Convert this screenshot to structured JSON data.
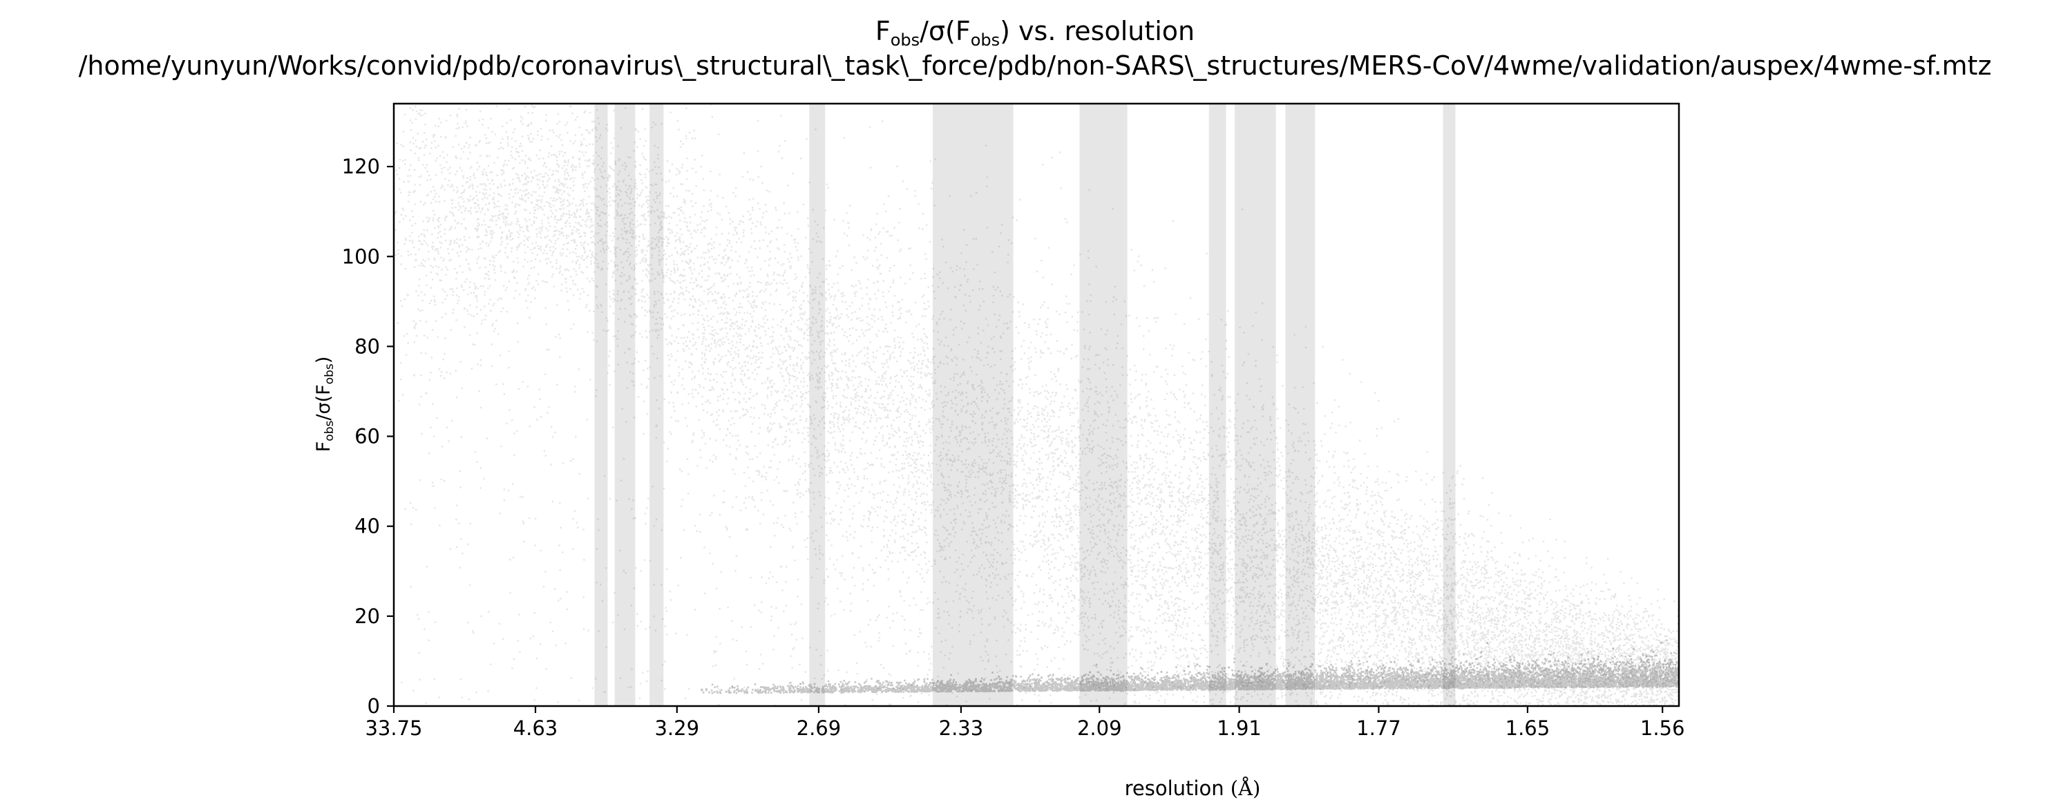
{
  "chart_data": {
    "type": "scatter",
    "title_line1_prefix": "F",
    "title_line1_sub1": "obs",
    "title_line1_mid": "/σ(F",
    "title_line1_sub2": "obs",
    "title_line1_suffix": ") vs. resolution",
    "title_line2": "/home/yunyun/Works/convid/pdb/coronavirus\\_structural\\_task\\_force/pdb/non-SARS\\_structures/MERS-CoV/4wme/validation/auspex/4wme-sf.mtz",
    "xlabel_text": "resolution ",
    "xlabel_unit": "(Å)",
    "ylabel_prefix": "F",
    "ylabel_sub1": "obs",
    "ylabel_mid": "/σ(F",
    "ylabel_sub2": "obs",
    "ylabel_suffix": ")",
    "x_scale": "inverse-square resolution (1/d²)",
    "xlim_resolution": [
      33.75,
      1.55
    ],
    "ylim": [
      0,
      134
    ],
    "x_ticks": [
      "33.75",
      "4.63",
      "3.29",
      "2.69",
      "2.33",
      "2.09",
      "1.91",
      "1.77",
      "1.65",
      "1.56"
    ],
    "x_tick_values": [
      33.75,
      4.63,
      3.29,
      2.69,
      2.33,
      2.09,
      1.91,
      1.77,
      1.65,
      1.56
    ],
    "y_ticks": [
      "0",
      "20",
      "40",
      "60",
      "80",
      "100",
      "120"
    ],
    "y_tick_values": [
      0,
      20,
      40,
      60,
      80,
      100,
      120
    ],
    "grid": false,
    "legend": "none",
    "point_color": "#000000",
    "band_color": "#e6e6e6",
    "highlighted_resolution_bands": [
      [
        3.9,
        3.78
      ],
      [
        3.72,
        3.56
      ],
      [
        3.46,
        3.37
      ],
      [
        2.72,
        2.67
      ],
      [
        2.39,
        2.23
      ],
      [
        2.12,
        2.05
      ],
      [
        1.945,
        1.925
      ],
      [
        1.915,
        1.87
      ],
      [
        1.86,
        1.83
      ],
      [
        1.715,
        1.705
      ]
    ],
    "density_profile": [
      {
        "resolution": 30.0,
        "center": 112,
        "spread": 16
      },
      {
        "resolution": 6.0,
        "center": 108,
        "spread": 14
      },
      {
        "resolution": 4.5,
        "center": 112,
        "spread": 10
      },
      {
        "resolution": 3.8,
        "center": 108,
        "spread": 12
      },
      {
        "resolution": 3.3,
        "center": 96,
        "spread": 16
      },
      {
        "resolution": 2.9,
        "center": 82,
        "spread": 18
      },
      {
        "resolution": 2.6,
        "center": 70,
        "spread": 20
      },
      {
        "resolution": 2.33,
        "center": 58,
        "spread": 22
      },
      {
        "resolution": 2.09,
        "center": 46,
        "spread": 22
      },
      {
        "resolution": 1.91,
        "center": 36,
        "spread": 20
      },
      {
        "resolution": 1.77,
        "center": 25,
        "spread": 16
      },
      {
        "resolution": 1.65,
        "center": 14,
        "spread": 10
      },
      {
        "resolution": 1.56,
        "center": 8,
        "spread": 6
      }
    ],
    "baseline_cluster": {
      "from_resolution": 3.2,
      "value": 3
    }
  }
}
